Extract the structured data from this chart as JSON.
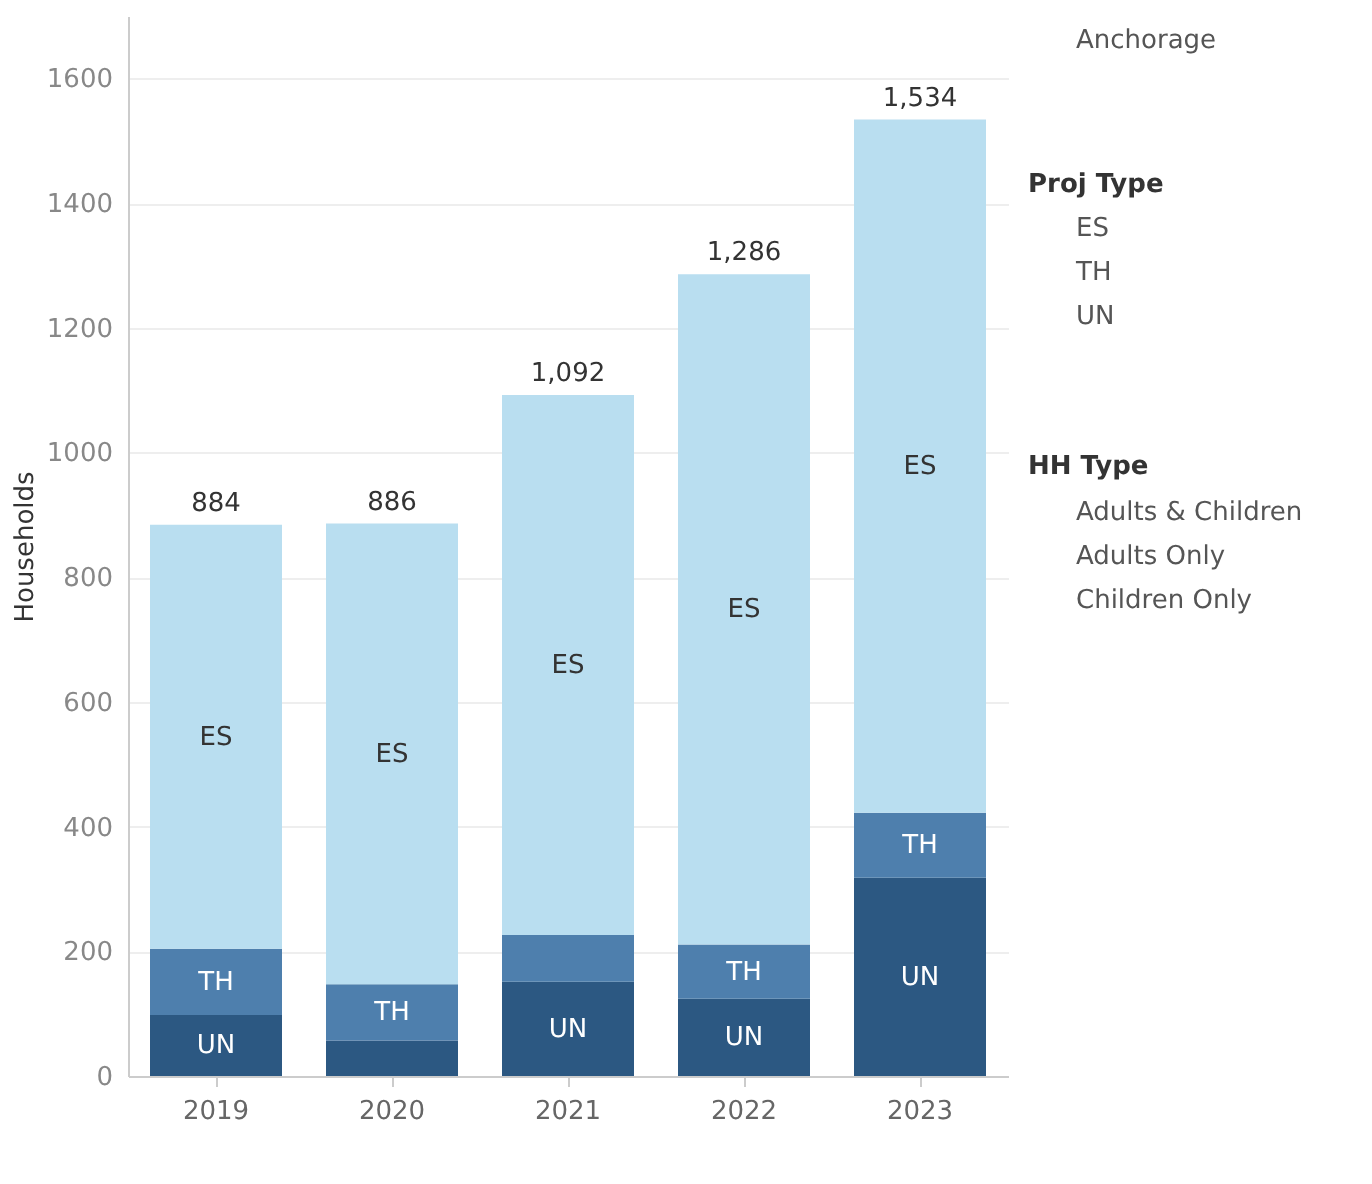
{
  "chart_data": {
    "type": "bar",
    "stacked": true,
    "ylabel": "Households",
    "categories": [
      "2019",
      "2020",
      "2021",
      "2022",
      "2023"
    ],
    "series": [
      {
        "name": "UN",
        "color": "#2c5882",
        "values": [
          98,
          57,
          151,
          124,
          318
        ]
      },
      {
        "name": "TH",
        "color": "#4e7fad",
        "values": [
          106,
          90,
          75,
          87,
          104
        ]
      },
      {
        "name": "ES",
        "color": "#b9def0",
        "values": [
          680,
          739,
          866,
          1075,
          1112
        ]
      }
    ],
    "totals": [
      "884",
      "886",
      "1,092",
      "1,286",
      "1,534"
    ],
    "ylim": [
      0,
      1700
    ],
    "yticks": [
      0,
      200,
      400,
      600,
      800,
      1000,
      1200,
      1400,
      1600
    ],
    "grid": "y",
    "legend": false,
    "annotations": [
      "Anchorage",
      "Proj Type",
      "ES",
      "TH",
      "UN",
      "HH Type",
      "Adults & Children",
      "Adults Only",
      "Children Only"
    ]
  }
}
